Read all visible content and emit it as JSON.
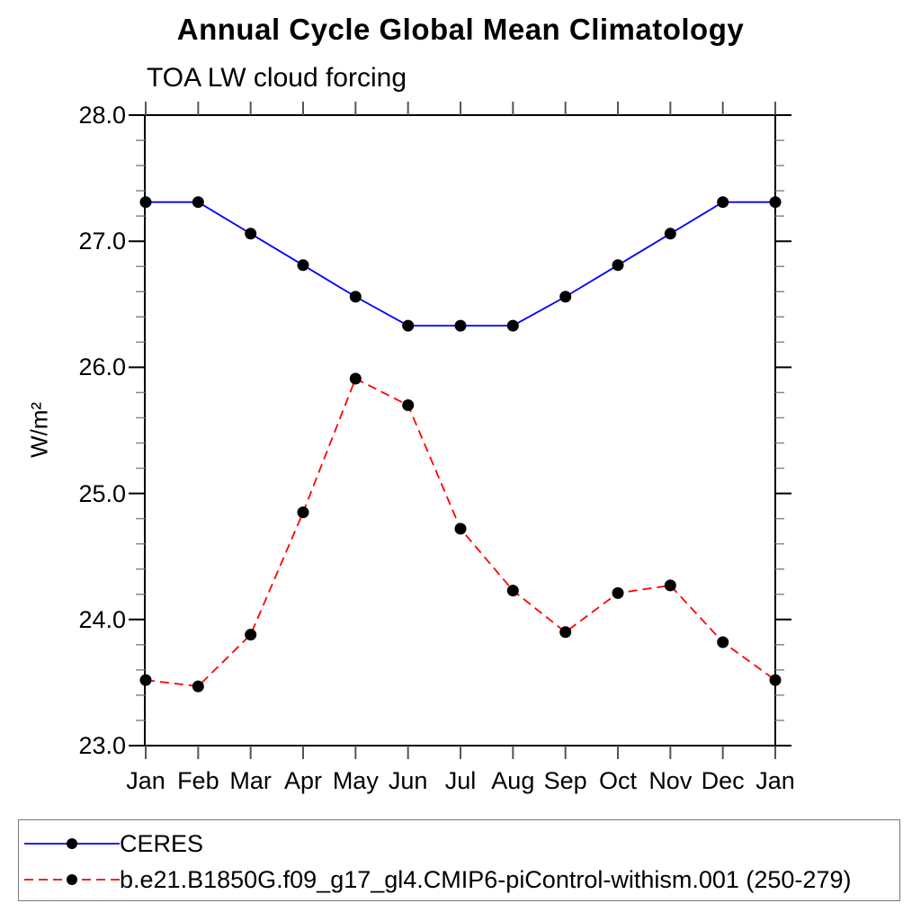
{
  "page": {
    "background_color": "#ffffff",
    "text_color": "#000000"
  },
  "chart_data": {
    "type": "line",
    "title": "Annual Cycle Global Mean Climatology",
    "subtitle": "TOA LW cloud forcing",
    "ylabel": "W/m²",
    "xlabel": "",
    "x_categories": [
      "Jan",
      "Feb",
      "Mar",
      "Apr",
      "May",
      "Jun",
      "Jul",
      "Aug",
      "Sep",
      "Oct",
      "Nov",
      "Dec",
      "Jan"
    ],
    "ylim": [
      23.0,
      28.0
    ],
    "ytick_step": 1.0,
    "ytick_labels": [
      "23.0",
      "24.0",
      "25.0",
      "26.0",
      "27.0",
      "28.0"
    ],
    "minor_tick_step": 0.2,
    "grid": false,
    "legend_position": "bottom",
    "frame_color": "#000000",
    "major_tick_color": "#000000",
    "month_tick_color": "#555555",
    "minor_tick_color": "#888888",
    "marker_shape": "filled-circle",
    "series": [
      {
        "name": "CERES",
        "color": "#0000ff",
        "line_style": "solid",
        "marker_color": "#000000",
        "values": [
          27.31,
          27.31,
          27.06,
          26.81,
          26.56,
          26.33,
          26.33,
          26.33,
          26.56,
          26.81,
          27.06,
          27.31,
          27.31
        ]
      },
      {
        "name": "b.e21.B1850G.f09_g17_gl4.CMIP6-piControl-withism.001 (250-279)",
        "color": "#ff0000",
        "line_style": "dashed",
        "marker_color": "#000000",
        "values": [
          23.52,
          23.47,
          23.88,
          24.85,
          25.91,
          25.7,
          24.72,
          24.23,
          23.9,
          24.21,
          24.27,
          23.82,
          23.52
        ]
      }
    ]
  }
}
